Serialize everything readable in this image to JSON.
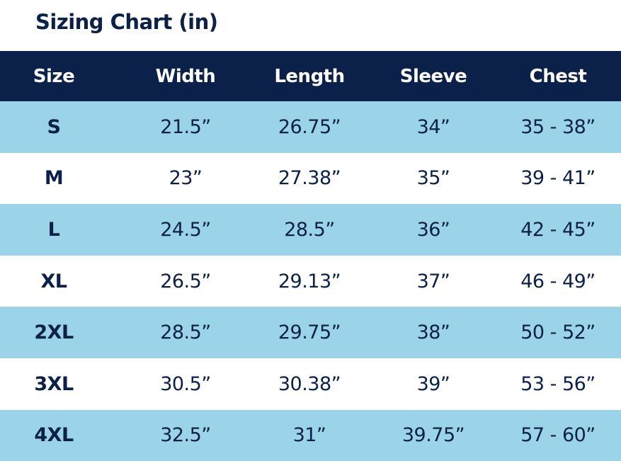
{
  "header": {
    "title": "Sizing Chart (in)"
  },
  "table": {
    "columns": [
      "Size",
      "Width",
      "Length",
      "Sleeve",
      "Chest"
    ],
    "rows": [
      [
        "S",
        "21.5”",
        "26.75”",
        "34”",
        "35 - 38”"
      ],
      [
        "M",
        "23”",
        "27.38”",
        "35”",
        "39 - 41”"
      ],
      [
        "L",
        "24.5”",
        "28.5”",
        "36”",
        "42 - 45”"
      ],
      [
        "XL",
        "26.5”",
        "29.13”",
        "37”",
        "46 - 49”"
      ],
      [
        "2XL",
        "28.5”",
        "29.75”",
        "38”",
        "50 - 52”"
      ],
      [
        "3XL",
        "30.5”",
        "30.38”",
        "39”",
        "53 - 56”"
      ],
      [
        "4XL",
        "32.5”",
        "31”",
        "39.75”",
        "57 - 60”"
      ]
    ]
  }
}
